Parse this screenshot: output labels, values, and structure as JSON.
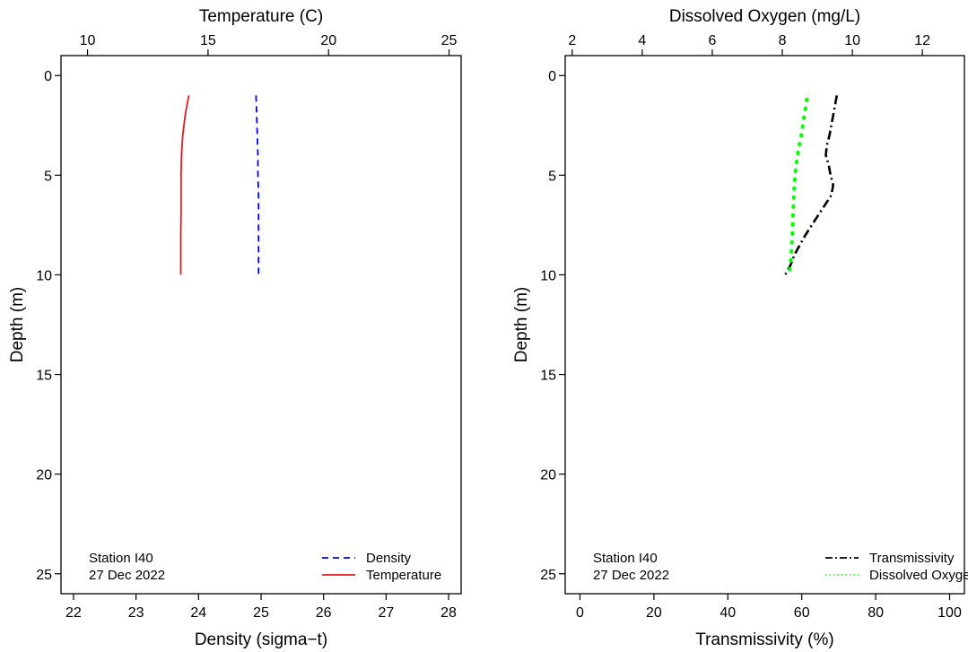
{
  "chart_data": [
    {
      "type": "line",
      "panel": "left",
      "ylabel": "Depth (m)",
      "ylim": [
        26,
        -1
      ],
      "yticks": [
        0,
        5,
        10,
        15,
        20,
        25
      ],
      "bottom_axis": {
        "label": "Density (sigma−t)",
        "range": [
          21.8,
          28.2
        ],
        "ticks": [
          22,
          23,
          24,
          25,
          26,
          27,
          28
        ]
      },
      "top_axis": {
        "label": "Temperature (C)",
        "range": [
          8.9,
          25.5
        ],
        "ticks": [
          10,
          15,
          20,
          25
        ]
      },
      "station": "Station I40",
      "date": "27 Dec 2022",
      "legend_placement": "bottom-right",
      "series": [
        {
          "name": "Density",
          "axis": "bottom",
          "color": "#0000ff",
          "style": "dashed",
          "x": [
            24.92,
            24.93,
            24.94,
            24.95,
            24.95,
            24.96,
            24.96,
            24.96,
            24.96,
            24.96
          ],
          "y": [
            1,
            2,
            3,
            4,
            5,
            6,
            7,
            8,
            9,
            10
          ]
        },
        {
          "name": "Temperature",
          "axis": "top",
          "color": "#e41a1c",
          "style": "solid",
          "x": [
            14.2,
            14.05,
            13.95,
            13.9,
            13.88,
            13.88,
            13.88,
            13.87,
            13.87,
            13.87
          ],
          "y": [
            1,
            2,
            3,
            4,
            5,
            6,
            7,
            8,
            9,
            10
          ]
        }
      ]
    },
    {
      "type": "line",
      "panel": "right",
      "ylabel": "Depth (m)",
      "ylim": [
        26,
        -1
      ],
      "yticks": [
        0,
        5,
        10,
        15,
        20,
        25
      ],
      "bottom_axis": {
        "label": "Transmissivity (%)",
        "range": [
          -4,
          104
        ],
        "ticks": [
          0,
          20,
          40,
          60,
          80,
          100
        ]
      },
      "top_axis": {
        "label": "Dissolved Oxygen (mg/L)",
        "range": [
          1.8,
          13.2
        ],
        "ticks": [
          2,
          4,
          6,
          8,
          10,
          12
        ]
      },
      "station": "Station I40",
      "date": "27 Dec 2022",
      "legend_placement": "bottom-right",
      "series": [
        {
          "name": "Transmissivity",
          "axis": "bottom",
          "color": "#000000",
          "style": "dashdot",
          "x": [
            69.5,
            68.5,
            67.5,
            66.8,
            66.5,
            67.3,
            67.8,
            68.5,
            68.0,
            64.5,
            61.0,
            59.5,
            58.0,
            57.0,
            55.5
          ],
          "y": [
            1,
            2,
            3,
            3.5,
            4,
            4.5,
            5,
            5.5,
            6,
            7,
            8,
            8.5,
            9,
            9.5,
            10
          ]
        },
        {
          "name": "Dissolved Oxygen",
          "axis": "top",
          "color": "#00ff00",
          "style": "dotted",
          "x": [
            8.7,
            8.62,
            8.55,
            8.45,
            8.38,
            8.34,
            8.32,
            8.3,
            8.28,
            8.25,
            8.2
          ],
          "y": [
            1.2,
            2.1,
            2.9,
            3.8,
            4.7,
            5.6,
            6.4,
            7.3,
            8.2,
            9.1,
            10
          ]
        }
      ]
    }
  ]
}
